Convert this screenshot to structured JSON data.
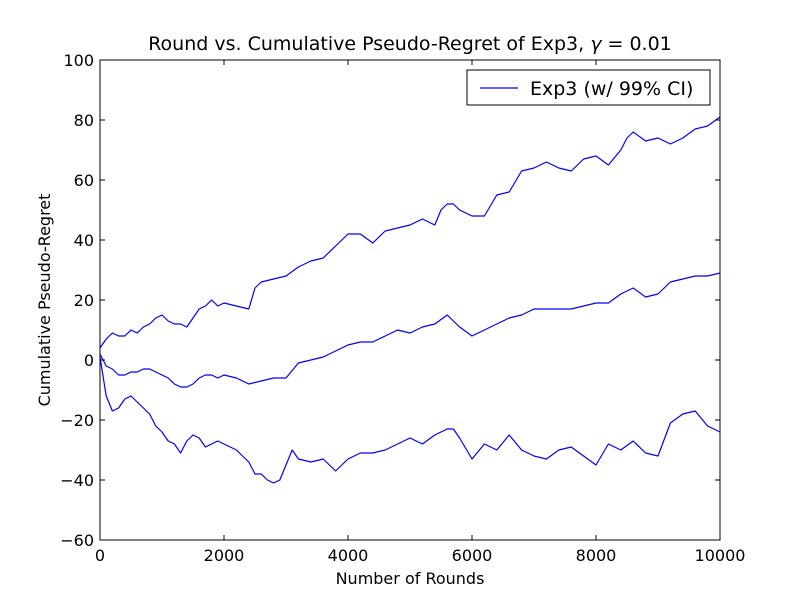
{
  "chart_data": {
    "type": "line",
    "title_prefix": "Round vs. Cumulative Pseudo-Regret of Exp3, ",
    "title_symbol": "γ",
    "title_suffix": " = 0.01",
    "xlabel": "Number of Rounds",
    "ylabel": "Cumulative Pseudo-Regret",
    "xlim": [
      0,
      10000
    ],
    "ylim": [
      -60,
      100
    ],
    "xticks": [
      0,
      2000,
      4000,
      6000,
      8000,
      10000
    ],
    "xtick_labels": [
      "0",
      "2000",
      "4000",
      "6000",
      "8000",
      "10000"
    ],
    "yticks": [
      -60,
      -40,
      -20,
      0,
      20,
      40,
      60,
      80,
      100
    ],
    "ytick_labels": [
      "−60",
      "−40",
      "−20",
      "0",
      "20",
      "40",
      "60",
      "80",
      "100"
    ],
    "grid": false,
    "legend_position": "top-right",
    "legend_label": "Exp3 (w/ 99% CI)",
    "line_color": "#0000ff",
    "series": [
      {
        "name": "Exp3 (w/ 99% CI)",
        "role": "upper",
        "x": [
          0,
          100,
          200,
          300,
          400,
          500,
          600,
          700,
          800,
          900,
          1000,
          1100,
          1200,
          1300,
          1400,
          1500,
          1600,
          1700,
          1800,
          1900,
          2000,
          2200,
          2400,
          2500,
          2600,
          2800,
          3000,
          3200,
          3400,
          3600,
          3800,
          4000,
          4200,
          4400,
          4600,
          4800,
          5000,
          5200,
          5400,
          5500,
          5600,
          5700,
          5800,
          6000,
          6200,
          6400,
          6600,
          6800,
          7000,
          7200,
          7400,
          7600,
          7800,
          8000,
          8200,
          8400,
          8500,
          8600,
          8800,
          9000,
          9200,
          9400,
          9600,
          9800,
          10000
        ],
        "y": [
          4,
          7,
          9,
          8,
          8,
          10,
          9,
          11,
          12,
          14,
          15,
          13,
          12,
          12,
          11,
          14,
          17,
          18,
          20,
          18,
          19,
          18,
          17,
          24,
          26,
          27,
          28,
          31,
          33,
          34,
          38,
          42,
          42,
          39,
          43,
          44,
          45,
          47,
          45,
          50,
          52,
          52,
          50,
          48,
          48,
          55,
          56,
          63,
          64,
          66,
          64,
          63,
          67,
          68,
          65,
          70,
          74,
          76,
          73,
          74,
          72,
          74,
          77,
          78,
          81
        ]
      },
      {
        "name": "",
        "role": "mean",
        "x": [
          0,
          100,
          200,
          300,
          400,
          500,
          600,
          700,
          800,
          900,
          1000,
          1100,
          1200,
          1300,
          1400,
          1500,
          1600,
          1700,
          1800,
          1900,
          2000,
          2200,
          2400,
          2600,
          2800,
          3000,
          3200,
          3400,
          3600,
          3800,
          4000,
          4200,
          4400,
          4600,
          4800,
          5000,
          5200,
          5400,
          5600,
          5700,
          5800,
          6000,
          6200,
          6400,
          6600,
          6800,
          7000,
          7200,
          7400,
          7600,
          7800,
          8000,
          8200,
          8400,
          8600,
          8800,
          9000,
          9200,
          9400,
          9600,
          9800,
          10000
        ],
        "y": [
          2,
          -2,
          -3,
          -5,
          -5,
          -4,
          -4,
          -3,
          -3,
          -4,
          -5,
          -6,
          -8,
          -9,
          -9,
          -8,
          -6,
          -5,
          -5,
          -6,
          -5,
          -6,
          -8,
          -7,
          -6,
          -6,
          -1,
          0,
          1,
          3,
          5,
          6,
          6,
          8,
          10,
          9,
          11,
          12,
          15,
          13,
          11,
          8,
          10,
          12,
          14,
          15,
          17,
          17,
          17,
          17,
          18,
          19,
          19,
          22,
          24,
          21,
          22,
          26,
          27,
          28,
          28,
          29
        ]
      },
      {
        "name": "",
        "role": "lower",
        "x": [
          0,
          100,
          200,
          300,
          400,
          500,
          600,
          700,
          800,
          900,
          1000,
          1100,
          1200,
          1300,
          1400,
          1500,
          1600,
          1700,
          1800,
          1900,
          2000,
          2200,
          2400,
          2500,
          2600,
          2700,
          2800,
          2900,
          3000,
          3100,
          3200,
          3400,
          3600,
          3800,
          4000,
          4200,
          4400,
          4600,
          4800,
          5000,
          5200,
          5400,
          5600,
          5700,
          5800,
          6000,
          6200,
          6400,
          6600,
          6800,
          7000,
          7200,
          7400,
          7600,
          7800,
          8000,
          8200,
          8400,
          8600,
          8800,
          9000,
          9200,
          9400,
          9600,
          9800,
          10000
        ],
        "y": [
          1,
          -12,
          -17,
          -16,
          -13,
          -12,
          -14,
          -16,
          -18,
          -22,
          -24,
          -27,
          -28,
          -31,
          -27,
          -25,
          -26,
          -29,
          -28,
          -27,
          -28,
          -30,
          -34,
          -38,
          -38,
          -40,
          -41,
          -40,
          -35,
          -30,
          -33,
          -34,
          -33,
          -37,
          -33,
          -31,
          -31,
          -30,
          -28,
          -26,
          -28,
          -25,
          -23,
          -23,
          -26,
          -33,
          -28,
          -30,
          -25,
          -30,
          -32,
          -33,
          -30,
          -29,
          -32,
          -35,
          -28,
          -30,
          -27,
          -31,
          -32,
          -21,
          -18,
          -17,
          -22,
          -24
        ]
      }
    ]
  }
}
